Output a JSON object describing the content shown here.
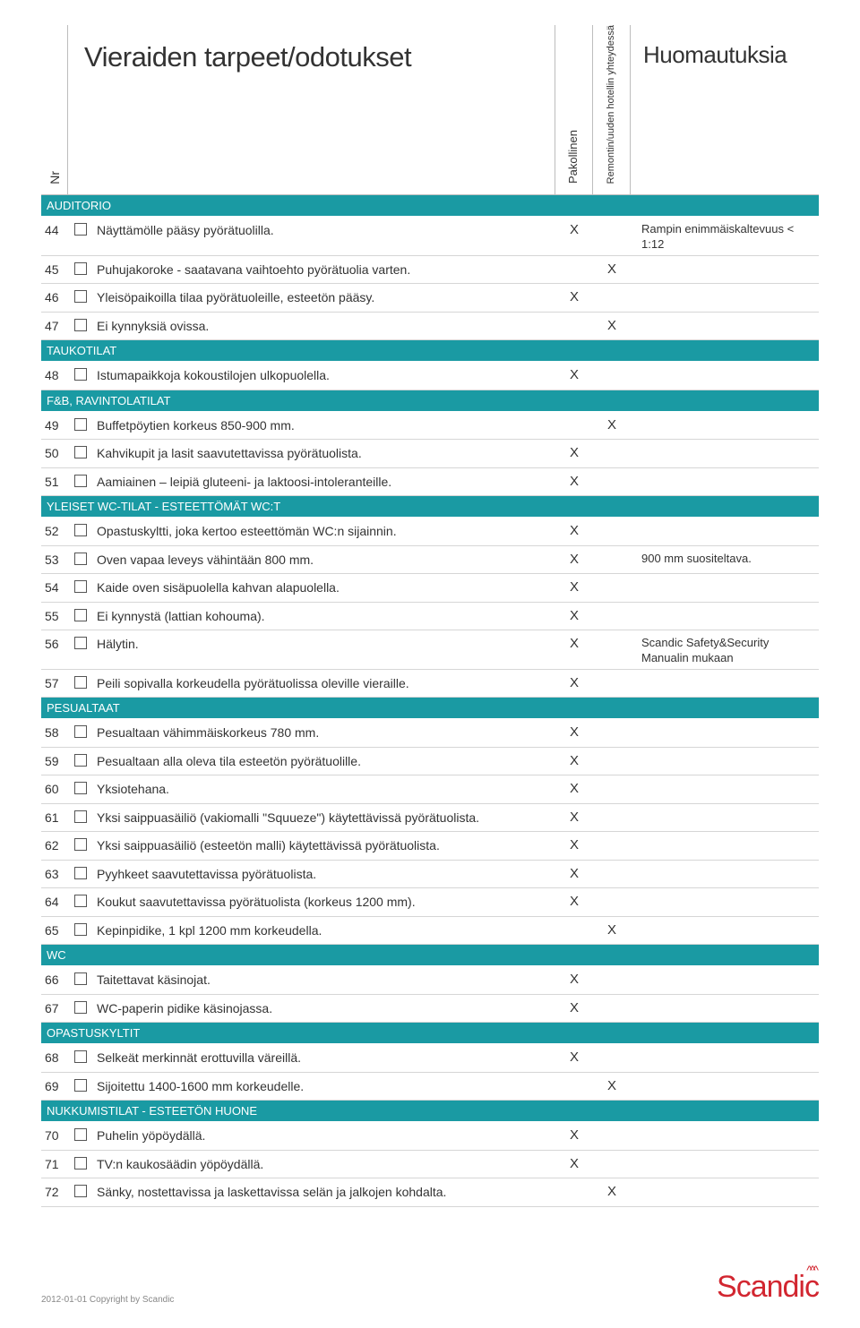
{
  "header": {
    "nr_label": "Nr",
    "title": "Vieraiden tarpeet/odotukset",
    "col_p": "Pakollinen",
    "col_r": "Remontin/uuden hotellin yhteydessä",
    "notes_title": "Huomautuksia"
  },
  "sections": [
    {
      "label": "AUDITORIO",
      "rows": [
        {
          "nr": "44",
          "desc": "Näyttämölle pääsy pyörätuolilla.",
          "p": "X",
          "r": "",
          "note": "Rampin enimmäiskaltevuus < 1:12"
        },
        {
          "nr": "45",
          "desc": "Puhujakoroke - saatavana vaihtoehto pyörätuolia varten.",
          "p": "",
          "r": "X",
          "note": ""
        },
        {
          "nr": "46",
          "desc": "Yleisöpaikoilla tilaa pyörätuoleille, esteetön pääsy.",
          "p": "X",
          "r": "",
          "note": ""
        },
        {
          "nr": "47",
          "desc": "Ei kynnyksiä ovissa.",
          "p": "",
          "r": "X",
          "note": ""
        }
      ]
    },
    {
      "label": "TAUKOTILAT",
      "rows": [
        {
          "nr": "48",
          "desc": "Istumapaikkoja kokoustilojen ulkopuolella.",
          "p": "X",
          "r": "",
          "note": ""
        }
      ]
    },
    {
      "label": "F&B, RAVINTOLATILAT",
      "rows": [
        {
          "nr": "49",
          "desc": "Buffetpöytien korkeus 850-900 mm.",
          "p": "",
          "r": "X",
          "note": ""
        },
        {
          "nr": "50",
          "desc": "Kahvikupit ja lasit saavutettavissa pyörätuolista.",
          "p": "X",
          "r": "",
          "note": ""
        },
        {
          "nr": "51",
          "desc": "Aamiainen – leipiä gluteeni- ja laktoosi-intoleranteille.",
          "p": "X",
          "r": "",
          "note": ""
        }
      ]
    },
    {
      "label": "YLEISET WC-TILAT - ESTEETTÖMÄT WC:T",
      "rows": [
        {
          "nr": "52",
          "desc": "Opastuskyltti, joka kertoo esteettömän WC:n sijainnin.",
          "p": "X",
          "r": "",
          "note": ""
        },
        {
          "nr": "53",
          "desc": "Oven vapaa leveys vähintään 800 mm.",
          "p": "X",
          "r": "",
          "note": "900 mm suositeltava."
        },
        {
          "nr": "54",
          "desc": "Kaide oven sisäpuolella kahvan alapuolella.",
          "p": "X",
          "r": "",
          "note": ""
        },
        {
          "nr": "55",
          "desc": "Ei kynnystä (lattian kohouma).",
          "p": "X",
          "r": "",
          "note": ""
        },
        {
          "nr": "56",
          "desc": "Hälytin.",
          "p": "X",
          "r": "",
          "note": "Scandic Safety&Security Manualin mukaan"
        },
        {
          "nr": "57",
          "desc": "Peili sopivalla korkeudella pyörätuolissa oleville vieraille.",
          "p": "X",
          "r": "",
          "note": ""
        }
      ]
    },
    {
      "label": "PESUALTAAT",
      "rows": [
        {
          "nr": "58",
          "desc": "Pesualtaan vähimmäiskorkeus 780 mm.",
          "p": "X",
          "r": "",
          "note": ""
        },
        {
          "nr": "59",
          "desc": "Pesualtaan alla oleva tila esteetön pyörätuolille.",
          "p": "X",
          "r": "",
          "note": ""
        },
        {
          "nr": "60",
          "desc": "Yksiotehana.",
          "p": "X",
          "r": "",
          "note": ""
        },
        {
          "nr": "61",
          "desc": "Yksi saippuasäiliö (vakiomalli \"Squueze\") käytettävissä pyörätuolista.",
          "p": "X",
          "r": "",
          "note": ""
        },
        {
          "nr": "62",
          "desc": "Yksi saippuasäiliö (esteetön malli) käytettävissä pyörätuolista.",
          "p": "X",
          "r": "",
          "note": ""
        },
        {
          "nr": "63",
          "desc": "Pyyhkeet saavutettavissa pyörätuolista.",
          "p": "X",
          "r": "",
          "note": ""
        },
        {
          "nr": "64",
          "desc": "Koukut saavutettavissa pyörätuolista (korkeus 1200 mm).",
          "p": "X",
          "r": "",
          "note": ""
        },
        {
          "nr": "65",
          "desc": "Kepinpidike, 1 kpl 1200 mm korkeudella.",
          "p": "",
          "r": "X",
          "note": ""
        }
      ]
    },
    {
      "label": "WC",
      "rows": [
        {
          "nr": "66",
          "desc": "Taitettavat käsinojat.",
          "p": "X",
          "r": "",
          "note": ""
        },
        {
          "nr": "67",
          "desc": "WC-paperin pidike käsinojassa.",
          "p": "X",
          "r": "",
          "note": ""
        }
      ]
    },
    {
      "label": "OPASTUSKYLTIT",
      "rows": [
        {
          "nr": "68",
          "desc": "Selkeät merkinnät erottuvilla väreillä.",
          "p": "X",
          "r": "",
          "note": ""
        },
        {
          "nr": "69",
          "desc": "Sijoitettu 1400-1600 mm korkeudelle.",
          "p": "",
          "r": "X",
          "note": ""
        }
      ]
    },
    {
      "label": "NUKKUMISTILAT - ESTEETÖN HUONE",
      "rows": [
        {
          "nr": "70",
          "desc": "Puhelin yöpöydällä.",
          "p": "X",
          "r": "",
          "note": ""
        },
        {
          "nr": "71",
          "desc": "TV:n kaukosäädin yöpöydällä.",
          "p": "X",
          "r": "",
          "note": ""
        },
        {
          "nr": "72",
          "desc": "Sänky, nostettavissa ja laskettavissa selän ja jalkojen kohdalta.",
          "p": "",
          "r": "X",
          "note": ""
        }
      ]
    }
  ],
  "footer": {
    "copyright": "2012-01-01 Copyright by Scandic",
    "logo": "Scandic"
  },
  "style": {
    "section_bg": "#1a9aa3",
    "section_fg": "#ffffff",
    "border": "#d6d6d6",
    "logo_color": "#d22630"
  }
}
